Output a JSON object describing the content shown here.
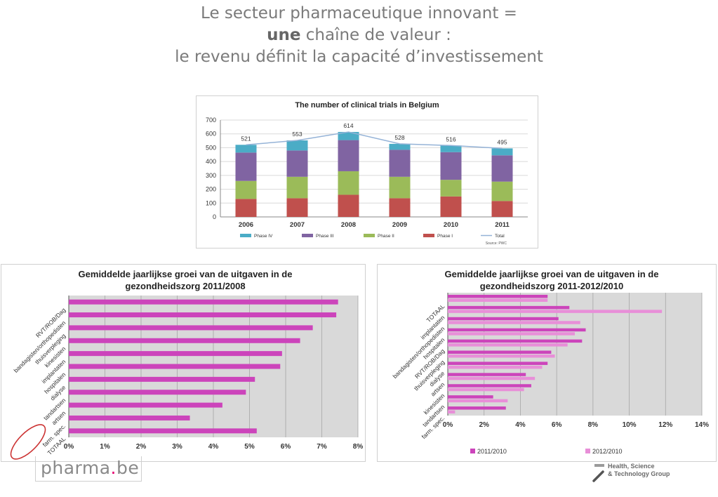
{
  "slide": {
    "title_line1": "Le secteur pharmaceutique innovant =",
    "title_line2_bold": "une",
    "title_line2_rest": " chaîne de valeur :",
    "title_line3": "le revenu définit la capacité d’investissement"
  },
  "logos": {
    "pharma_main": "pharma",
    "pharma_dot": ".",
    "pharma_tld": "be",
    "hst_line1": "Health, Science",
    "hst_line2": "& Technology Group"
  },
  "colors": {
    "phase_iv": "#4bacc6",
    "phase_iii": "#8064a2",
    "phase_ii": "#9bbb59",
    "phase_i": "#c0504d",
    "total": "#95b3d7",
    "bar_magenta": "#cc44bb",
    "bar_pink": "#e88fd8",
    "plot_bg": "#d9d9d9",
    "circle": "#cc3333"
  },
  "chart_data": [
    {
      "type": "bar",
      "stacked": true,
      "title": "The number of clinical trials in Belgium",
      "categories": [
        "2006",
        "2007",
        "2008",
        "2009",
        "2010",
        "2011"
      ],
      "series": [
        {
          "name": "Phase I",
          "values": [
            130,
            135,
            160,
            135,
            148,
            115
          ]
        },
        {
          "name": "Phase II",
          "values": [
            130,
            155,
            170,
            155,
            120,
            140
          ]
        },
        {
          "name": "Phase III",
          "values": [
            205,
            190,
            225,
            195,
            200,
            190
          ]
        },
        {
          "name": "Phase IV",
          "values": [
            56,
            73,
            59,
            43,
            48,
            50
          ]
        }
      ],
      "line_series": {
        "name": "Total",
        "values": [
          521,
          553,
          614,
          528,
          516,
          495
        ]
      },
      "data_labels": [
        "521",
        "553",
        "614",
        "528",
        "516",
        "495"
      ],
      "legend_labels": [
        "Phase IV",
        "Phase III",
        "Phase II",
        "Phase I",
        "Total"
      ],
      "legend_order": [
        "Phase IV",
        "Phase III",
        "Phase II",
        "Phase I",
        "Total"
      ],
      "legend_position": "bottom",
      "source": "Source: PWC",
      "ylim": [
        0,
        700
      ],
      "yticks": [
        "0",
        "100",
        "200",
        "300",
        "400",
        "500",
        "600",
        "700"
      ],
      "grid": true
    },
    {
      "type": "bar",
      "orientation": "horizontal",
      "title_line1": "Gemiddelde jaarlijkse groei van de uitgaven in de",
      "title_line2": "gezondheidszorg 2011/2008",
      "categories": [
        "RVT/ROB/Dag",
        "bandagisten/orthopedisten",
        "thuisverpleging",
        "kinesisten",
        "implantaten",
        "hospitalen",
        "dialyse",
        "tandartsen",
        "artsen",
        "farm. spec.",
        "TOTAAL"
      ],
      "values": [
        7.45,
        7.4,
        6.75,
        6.4,
        5.9,
        5.85,
        5.15,
        4.9,
        4.25,
        3.35,
        5.2
      ],
      "xlim": [
        0,
        8
      ],
      "xticks": [
        "0%",
        "1%",
        "2%",
        "3%",
        "4%",
        "5%",
        "6%",
        "7%",
        "8%"
      ],
      "highlighted_category": "farm. spec.",
      "grid": true
    },
    {
      "type": "bar",
      "orientation": "horizontal",
      "title_line1": "Gemiddelde jaarlijkse groei van de uitgaven in de",
      "title_line2": "gezondheidszorg 2011-2012/2010",
      "categories": [
        "TOTAAL",
        "implantaten",
        "bandagisten/orthopedisten",
        "hospitalen",
        "RVT/ROB/Dag",
        "thuisverpleging",
        "dialyse",
        "artsen",
        "kinesisten",
        "tandartsen",
        "farm. spec."
      ],
      "series": [
        {
          "name": "2011/2010",
          "values": [
            5.5,
            6.7,
            6.1,
            7.6,
            7.4,
            5.7,
            5.5,
            4.3,
            4.6,
            2.5,
            3.2
          ]
        },
        {
          "name": "2012/2010",
          "values": [
            5.5,
            11.8,
            7.3,
            7.0,
            6.6,
            5.9,
            5.2,
            4.8,
            4.2,
            3.3,
            0.4
          ]
        }
      ],
      "legend_labels": [
        "2011/2010",
        "2012/2010"
      ],
      "legend_position": "bottom",
      "xlim": [
        0,
        14
      ],
      "xticks": [
        "0%",
        "2%",
        "4%",
        "6%",
        "8%",
        "10%",
        "12%",
        "14%"
      ],
      "grid": true
    }
  ]
}
